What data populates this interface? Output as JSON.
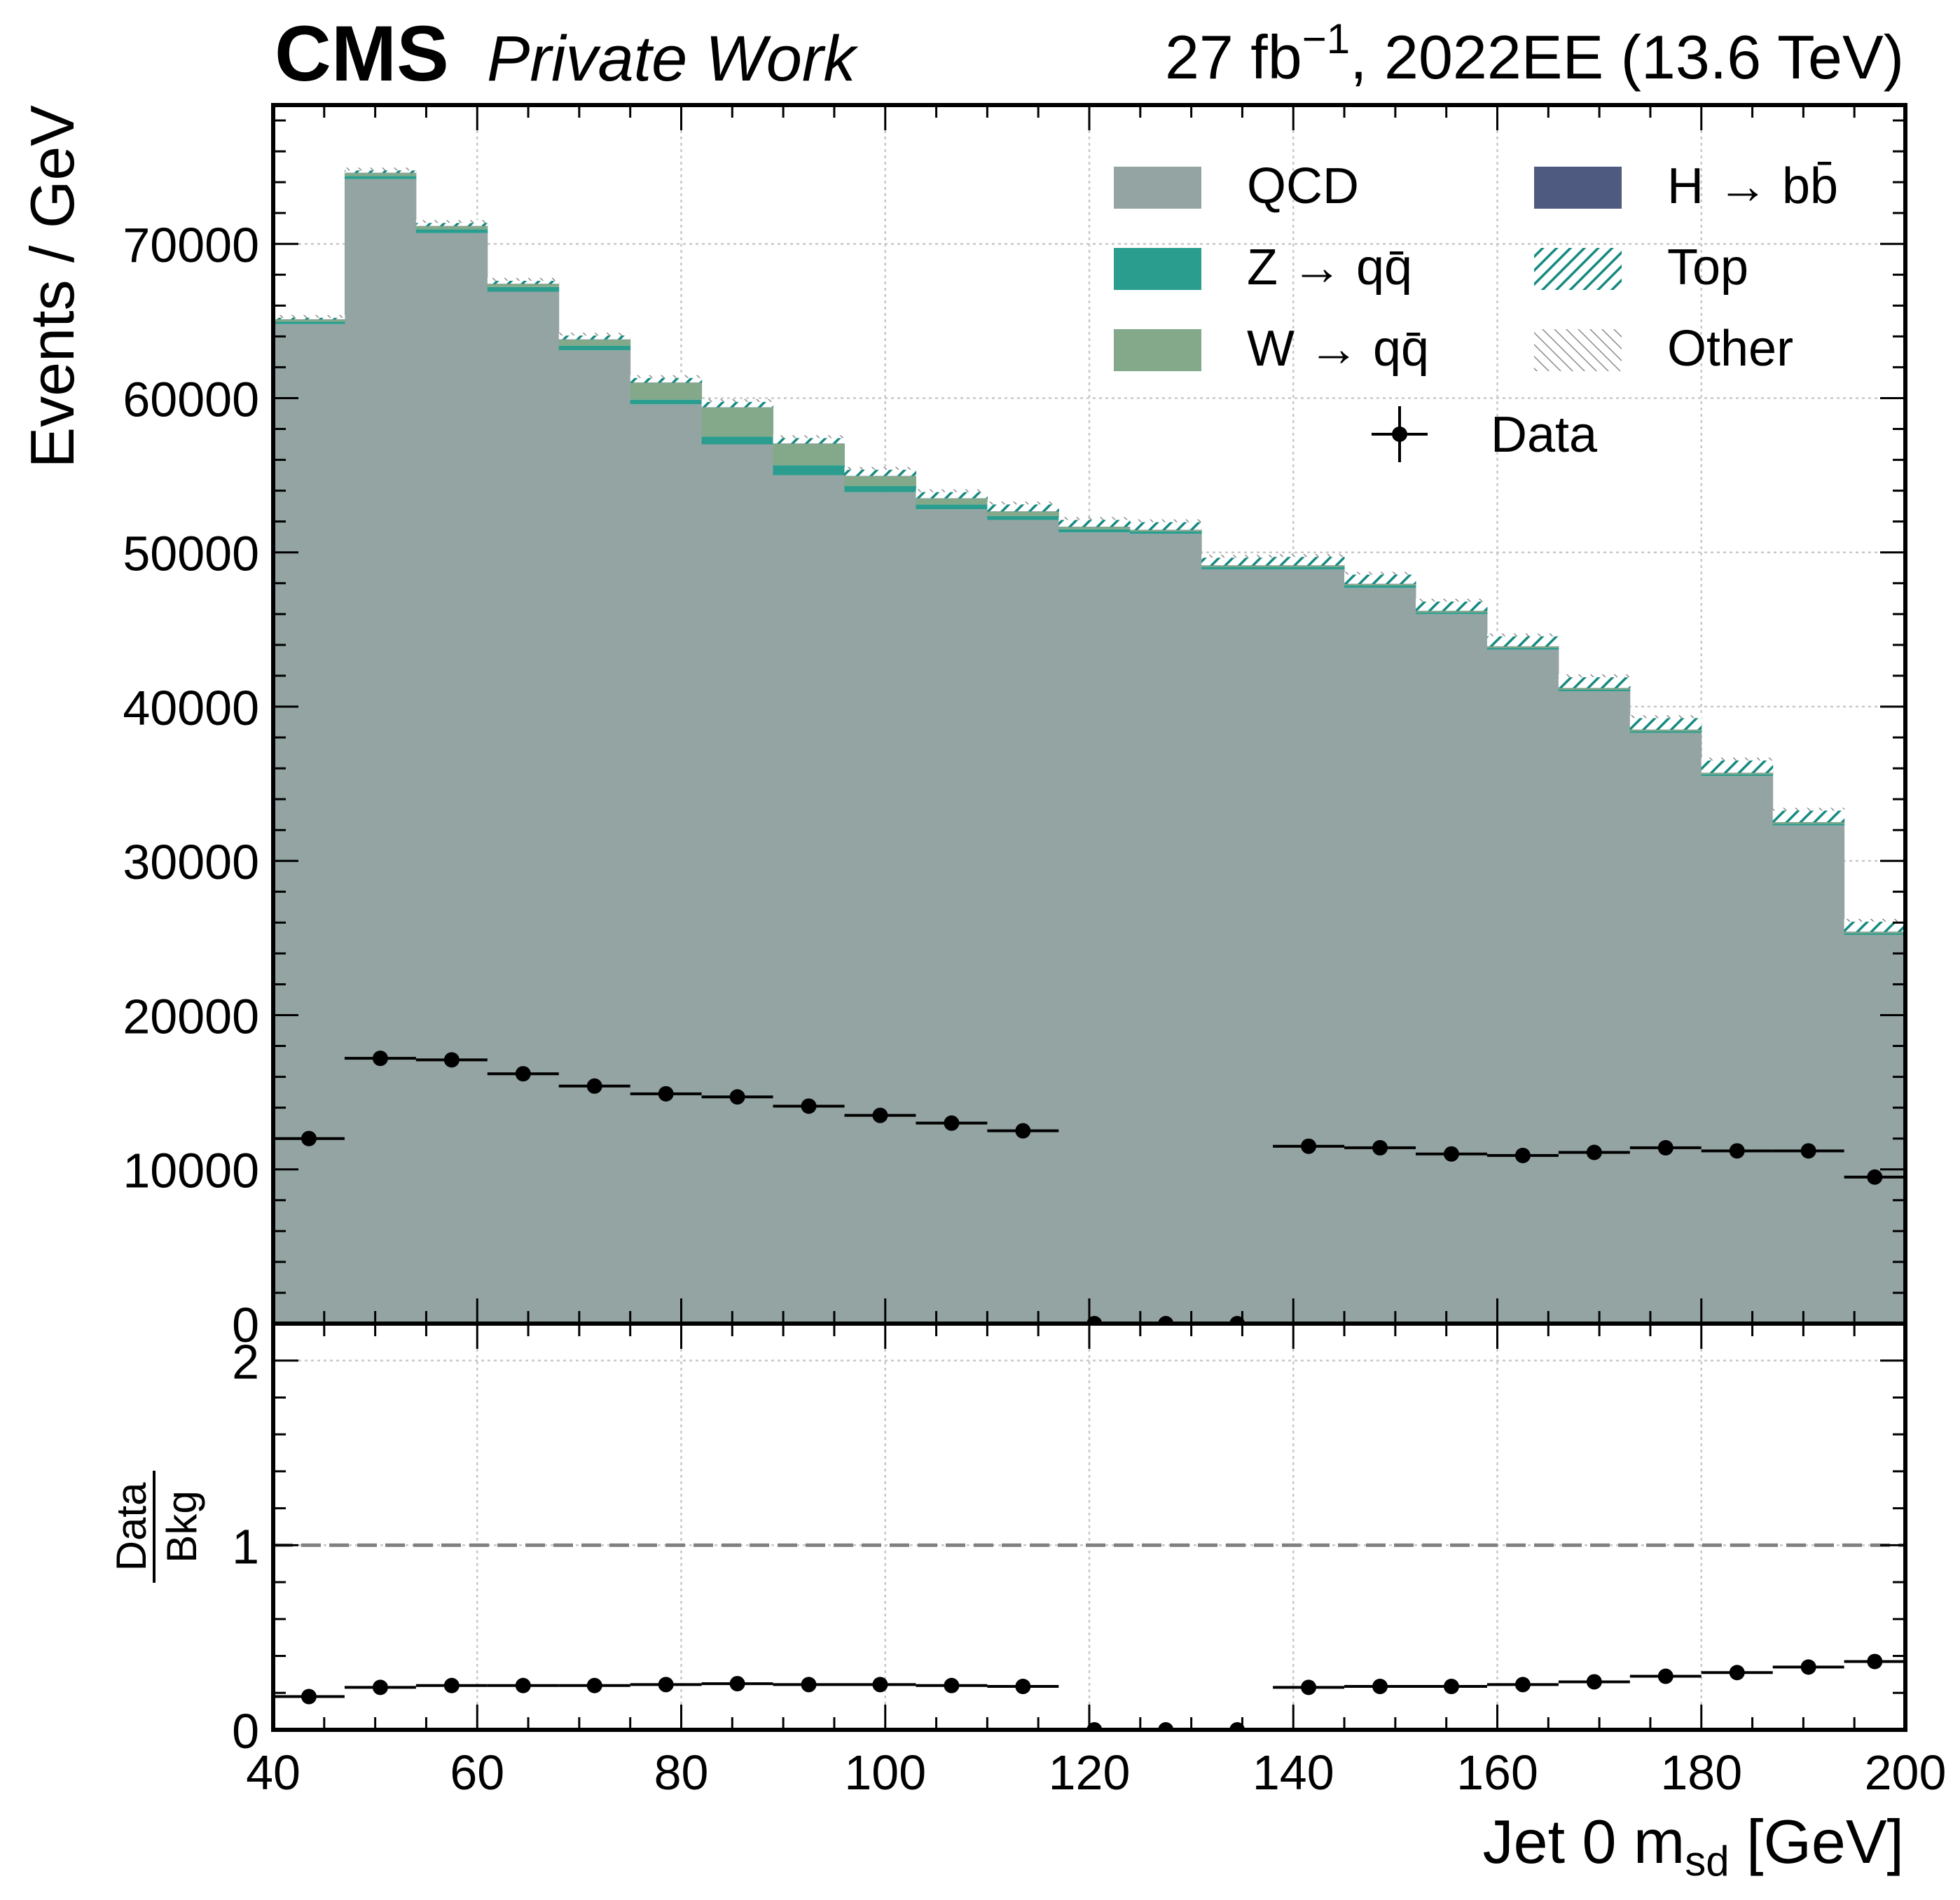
{
  "chart_data": [
    {
      "type": "histogram",
      "stacked": true,
      "header": {
        "experiment": "CMS",
        "label": "Private Work",
        "lumi_value": "27 fb",
        "lumi_exp": "−1",
        "lumi_rest": ", 2022EE (13.6 TeV)"
      },
      "xlabel_main": "Jet 0 m",
      "xlabel_sub": "sd",
      "xlabel_unit": " [GeV]",
      "ylabel": "Events / GeV",
      "xlim": [
        40,
        200
      ],
      "ylim": [
        0,
        79000
      ],
      "x_ticks": [
        "40",
        "60",
        "80",
        "100",
        "120",
        "140",
        "160",
        "180",
        "200"
      ],
      "y_ticks": [
        "0",
        "10000",
        "20000",
        "30000",
        "40000",
        "50000",
        "60000",
        "70000"
      ],
      "grid": true,
      "legend_placement": "top-right",
      "bin_edges": [
        40,
        47,
        54,
        61,
        68,
        75,
        82,
        89,
        96,
        103,
        110,
        117,
        124,
        131,
        138,
        145,
        152,
        159,
        166,
        173,
        180,
        187,
        194,
        200
      ],
      "series": [
        {
          "name": "QCD",
          "color": "#94a4a2",
          "values": [
            64800,
            74200,
            70700,
            66900,
            63100,
            59600,
            57000,
            55000,
            53900,
            52800,
            52100,
            51300,
            51200,
            48900,
            48900,
            47700,
            46000,
            43700,
            41000,
            38300,
            35500,
            32300,
            25200
          ]
        },
        {
          "name": "Z → qq̄",
          "color": "#2a9d8f",
          "values": [
            150,
            200,
            250,
            300,
            300,
            300,
            500,
            650,
            400,
            300,
            250,
            200,
            150,
            150,
            150,
            150,
            100,
            100,
            100,
            100,
            100,
            100,
            100
          ]
        },
        {
          "name": "W → qq̄",
          "color": "#83a98a",
          "values": [
            150,
            200,
            200,
            200,
            400,
            1100,
            1900,
            1400,
            650,
            400,
            300,
            150,
            100,
            100,
            100,
            100,
            100,
            100,
            100,
            100,
            100,
            100,
            100
          ]
        },
        {
          "name": "H → bb̄",
          "color": "#4e5a80",
          "values": [
            10,
            10,
            10,
            10,
            10,
            10,
            10,
            10,
            10,
            10,
            10,
            10,
            10,
            10,
            10,
            10,
            10,
            10,
            10,
            10,
            10,
            10,
            10
          ]
        },
        {
          "name": "Top",
          "color": "#168a80",
          "hatch": true,
          "values": [
            100,
            150,
            200,
            200,
            250,
            300,
            350,
            350,
            400,
            400,
            450,
            450,
            500,
            500,
            550,
            600,
            600,
            650,
            700,
            750,
            800,
            750,
            650
          ]
        },
        {
          "name": "Other",
          "color": "#8a8a8a",
          "hatch": true,
          "values": [
            20,
            20,
            20,
            20,
            20,
            20,
            20,
            20,
            20,
            20,
            20,
            20,
            20,
            20,
            20,
            20,
            20,
            20,
            20,
            20,
            20,
            20,
            20
          ]
        }
      ],
      "data": {
        "name": "Data",
        "x": [
          43.5,
          50.5,
          57.5,
          64.5,
          71.5,
          78.5,
          85.5,
          92.5,
          99.5,
          106.5,
          113.5,
          120.5,
          127.5,
          134.5,
          141.5,
          148.5,
          155.5,
          162.5,
          169.5,
          176.5,
          183.5,
          190.5,
          197.0
        ],
        "y": [
          12000,
          17200,
          17100,
          16200,
          15400,
          14900,
          14700,
          14100,
          13500,
          13000,
          12500,
          0,
          0,
          0,
          11500,
          11400,
          11000,
          10900,
          11100,
          11400,
          11200,
          11200,
          9500
        ]
      }
    },
    {
      "type": "scatter",
      "panel": "ratio",
      "ylabel_num": "Data",
      "ylabel_den": "Bkg",
      "ylim": [
        0,
        2.2
      ],
      "y_ticks": [
        "0",
        "1",
        "2"
      ],
      "reference_line": 1,
      "x": [
        43.5,
        50.5,
        57.5,
        64.5,
        71.5,
        78.5,
        85.5,
        92.5,
        99.5,
        106.5,
        113.5,
        120.5,
        127.5,
        134.5,
        141.5,
        148.5,
        155.5,
        162.5,
        169.5,
        176.5,
        183.5,
        190.5,
        197.0
      ],
      "values": [
        0.18,
        0.23,
        0.24,
        0.24,
        0.24,
        0.245,
        0.25,
        0.245,
        0.245,
        0.24,
        0.235,
        0,
        0,
        0,
        0.23,
        0.235,
        0.235,
        0.245,
        0.26,
        0.29,
        0.31,
        0.34,
        0.37
      ]
    }
  ]
}
